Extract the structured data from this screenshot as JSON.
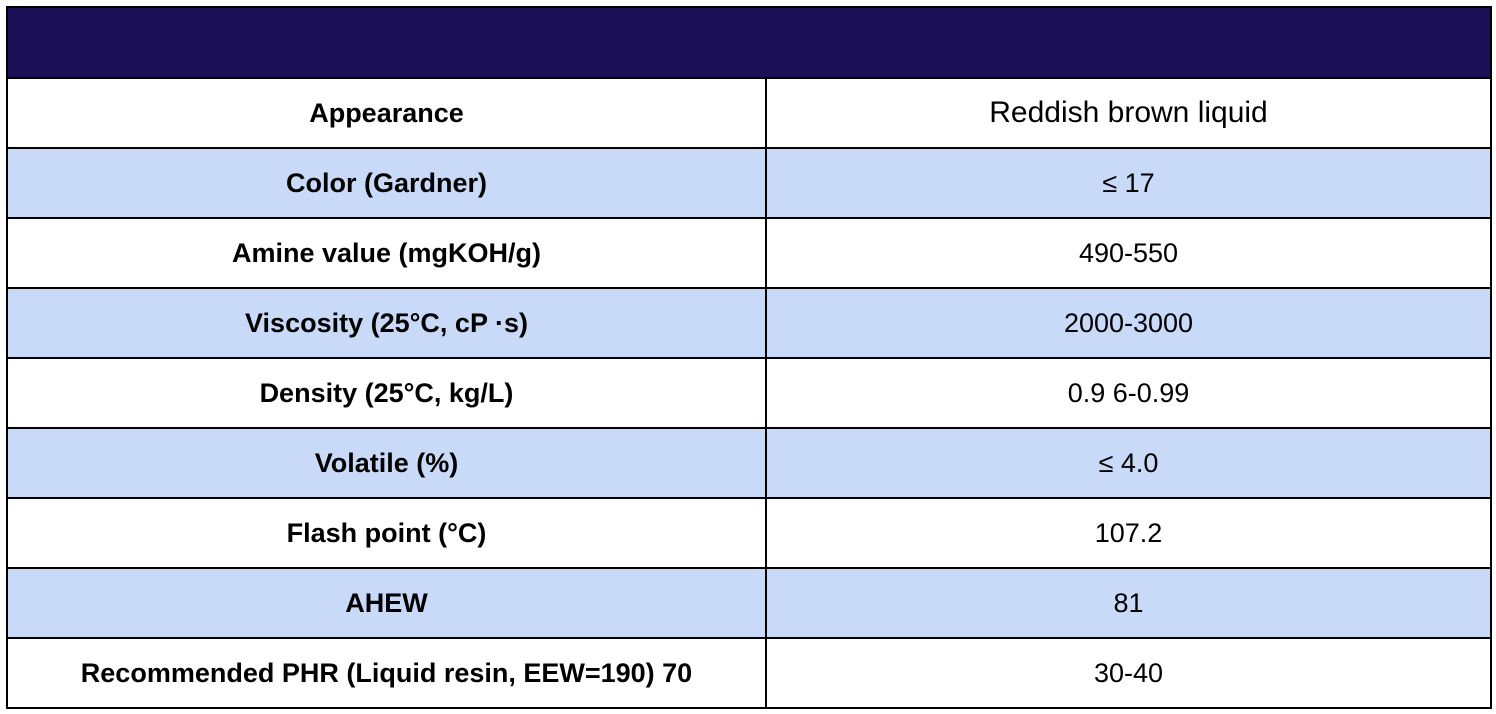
{
  "table": {
    "header_color": "#1b1056",
    "shaded_row_color": "#c9daf8",
    "rows": [
      {
        "property": "Appearance",
        "value": "Reddish brown liquid"
      },
      {
        "property": "Color (Gardner)",
        "value": "≤ 17"
      },
      {
        "property": "Amine value (mgKOH/g)",
        "value": "490-550"
      },
      {
        "property": "Viscosity (25°C, cP ·s)",
        "value": "2000-3000"
      },
      {
        "property": "Density (25°C, kg/L)",
        "value": "0.9 6-0.99"
      },
      {
        "property": "Volatile (%)",
        "value": "≤ 4.0"
      },
      {
        "property": "Flash point (°C)",
        "value": "107.2"
      },
      {
        "property": "AHEW",
        "value": "81"
      },
      {
        "property": "Recommended PHR (Liquid resin, EEW=190) 70",
        "value": "30-40"
      }
    ]
  }
}
